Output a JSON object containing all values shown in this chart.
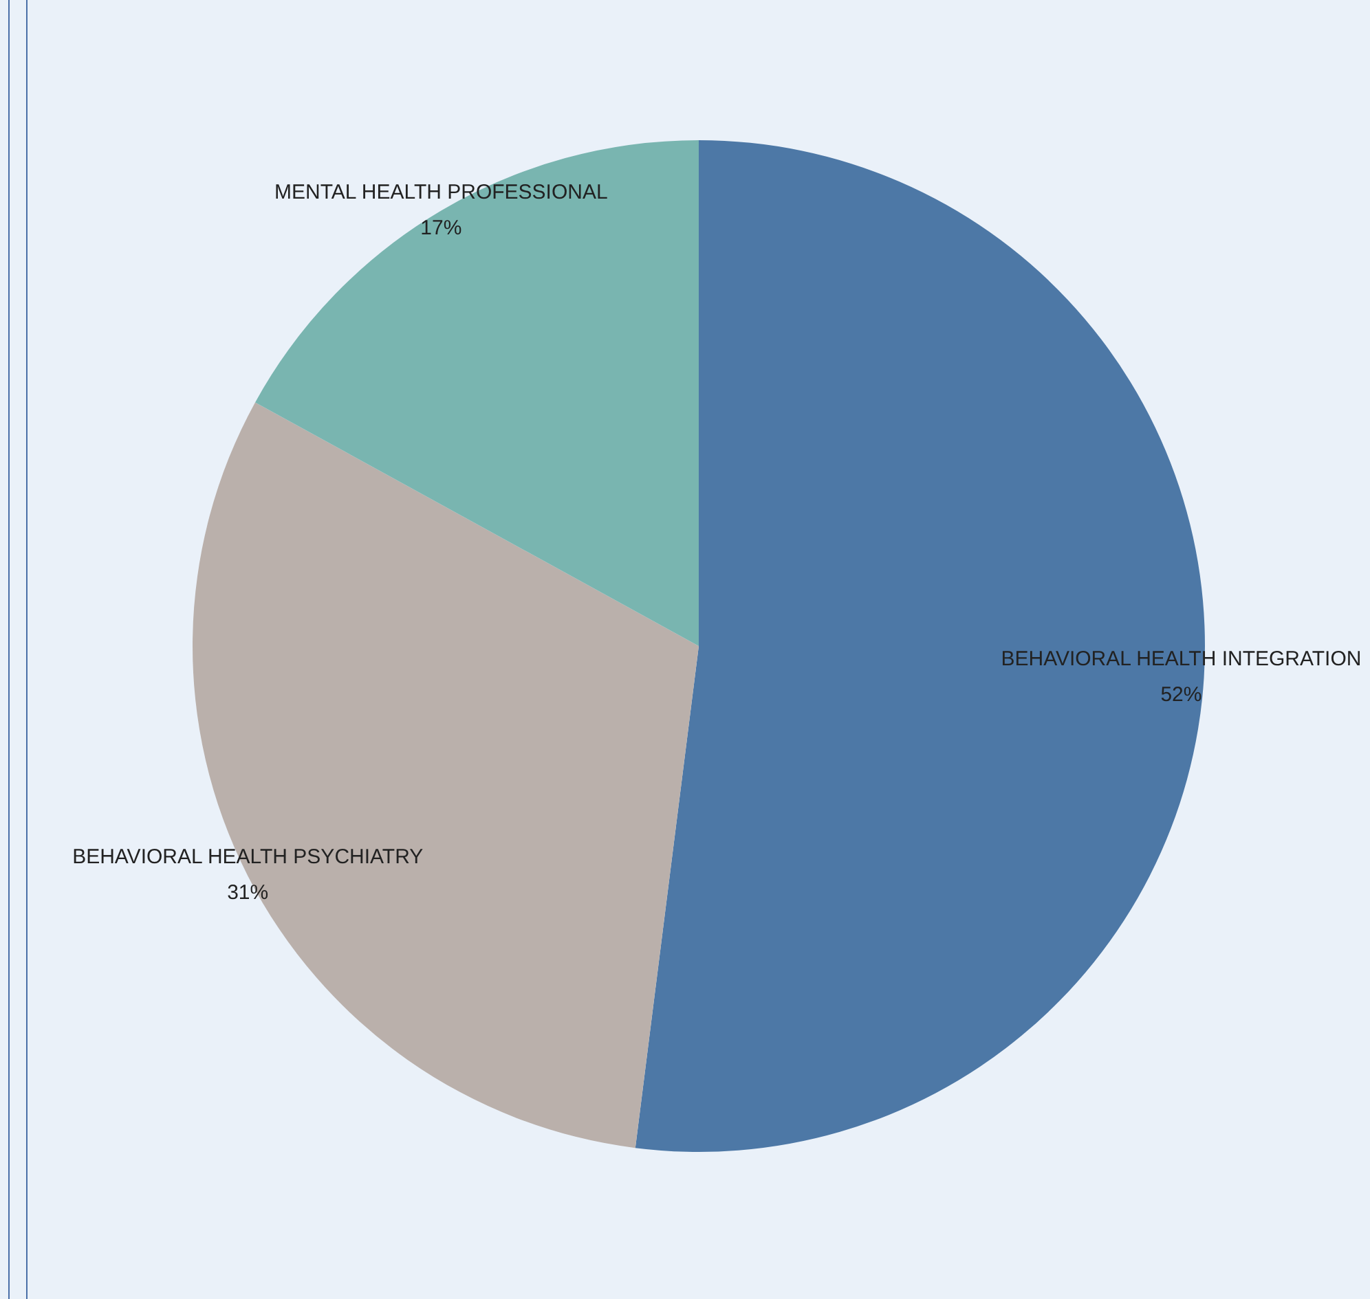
{
  "chart_data": {
    "type": "pie",
    "categories": [
      "BEHAVIORAL HEALTH INTEGRATION",
      "BEHAVIORAL HEALTH PSYCHIATRY",
      "MENTAL HEALTH PROFESSIONAL"
    ],
    "values": [
      52,
      31,
      17
    ],
    "colors": [
      "#4d78a6",
      "#bab0ab",
      "#79b5b0"
    ],
    "value_labels": [
      "52%",
      "31%",
      "17%"
    ],
    "legend": false
  }
}
